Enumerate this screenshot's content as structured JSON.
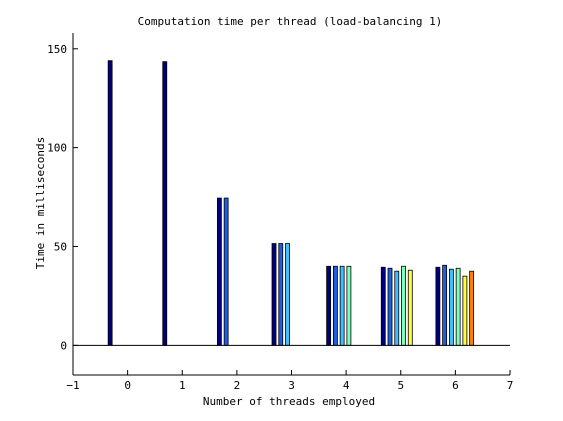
{
  "chart_data": {
    "type": "bar",
    "title": "Computation time per thread (load-balancing 1)",
    "xlabel": "Number of threads employed",
    "ylabel": "Time in milliseconds",
    "xlim": [
      -1,
      7
    ],
    "ylim": [
      -15,
      158
    ],
    "xticks": [
      -1,
      0,
      1,
      2,
      3,
      4,
      5,
      6,
      7
    ],
    "yticks": [
      0,
      50,
      100,
      150
    ],
    "grid": false,
    "legend": "none",
    "thread_colors": [
      "#00007f",
      "#1f5fdf",
      "#3fbfff",
      "#7fffbf",
      "#ffff3f",
      "#ff7f00",
      "#df2f00",
      "#7f0000"
    ],
    "groups": [
      {
        "n_threads": 0,
        "values": [
          144
        ]
      },
      {
        "n_threads": 1,
        "values": [
          143.5
        ]
      },
      {
        "n_threads": 2,
        "values": [
          74.5,
          74.5
        ]
      },
      {
        "n_threads": 3,
        "values": [
          51.5,
          51.5,
          51.5
        ]
      },
      {
        "n_threads": 4,
        "values": [
          40,
          40,
          40,
          40
        ]
      },
      {
        "n_threads": 5,
        "values": [
          39.5,
          39,
          37.5,
          40,
          38
        ]
      },
      {
        "n_threads": 6,
        "values": [
          39.5,
          40.5,
          38.5,
          39,
          35,
          37.5
        ]
      }
    ]
  }
}
